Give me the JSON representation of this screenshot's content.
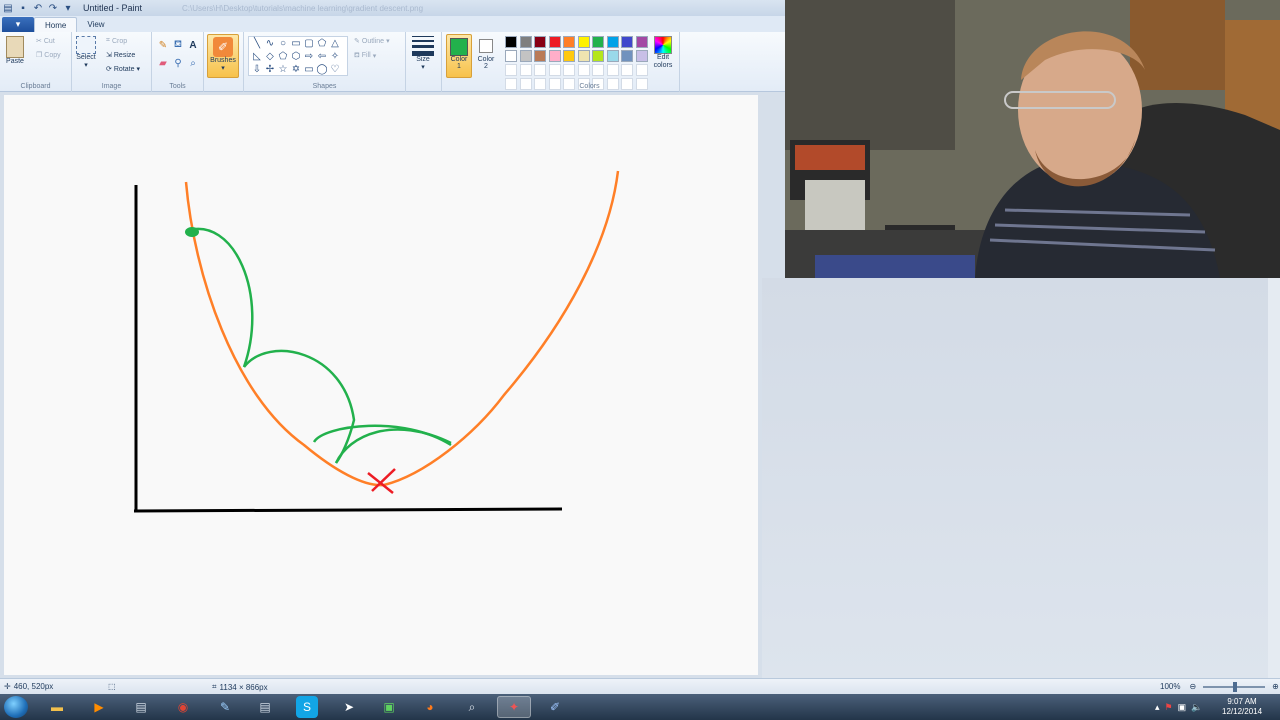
{
  "window": {
    "title": "Untitled - Paint",
    "title_path": "C:\\Users\\H\\Desktop\\tutorials\\machine learning\\gradient descent.png",
    "quick_access_icons": [
      "save-icon",
      "undo-icon",
      "redo-icon",
      "dropdown-icon"
    ]
  },
  "ribbon": {
    "file_tab": "▾",
    "tabs": [
      {
        "label": "Home",
        "active": true
      },
      {
        "label": "View",
        "active": false
      }
    ],
    "clipboard": {
      "group_label": "Clipboard",
      "paste": "Paste",
      "cut": "Cut",
      "copy": "Copy"
    },
    "image": {
      "group_label": "Image",
      "select": "Select",
      "crop": "Crop",
      "resize": "Resize",
      "rotate": "Rotate"
    },
    "tools": {
      "group_label": "Tools"
    },
    "brushes": {
      "label": "Brushes"
    },
    "shapes": {
      "group_label": "Shapes",
      "outline": "Outline",
      "fill": "Fill"
    },
    "size": {
      "label": "Size"
    },
    "color1": {
      "label": "Color",
      "sub": "1",
      "value": "#22b14c"
    },
    "color2": {
      "label": "Color",
      "sub": "2",
      "value": "#ffffff"
    },
    "colors": {
      "group_label": "Colors",
      "edit": "Edit colors",
      "palette_row1": [
        "#000000",
        "#7f7f7f",
        "#880015",
        "#ed1c24",
        "#ff7f27",
        "#fff200",
        "#22b14c",
        "#00a2e8",
        "#3f48cc",
        "#a349a4"
      ],
      "palette_row2": [
        "#ffffff",
        "#c3c3c3",
        "#b97a57",
        "#ffaec9",
        "#ffc90e",
        "#efe4b0",
        "#b5e61d",
        "#99d9ea",
        "#7092be",
        "#c8bfe7"
      ]
    }
  },
  "drawing": {
    "axis_color": "#000000",
    "curve_color": "#ff7f27",
    "steps_color": "#22b14c",
    "minimum_marker_color": "#ed1c24"
  },
  "statusbar": {
    "cursor_pos": "460, 520px",
    "canvas_size": "1134 × 866px",
    "zoom": "100%"
  },
  "taskbar": {
    "apps": [
      "explorer-icon",
      "media-player-icon",
      "python-file-icon",
      "chrome-icon",
      "notepad-icon",
      "python-icon",
      "skype-icon",
      "vs-icon",
      "terminal-icon",
      "firefox-icon",
      "search-app-icon",
      "app-icon",
      "paint-icon"
    ],
    "time": "9:07 AM",
    "date": "12/12/2014"
  }
}
